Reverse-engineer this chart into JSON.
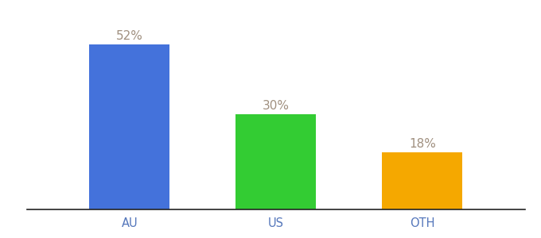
{
  "categories": [
    "AU",
    "US",
    "OTH"
  ],
  "values": [
    52,
    30,
    18
  ],
  "bar_colors": [
    "#4472db",
    "#33cc33",
    "#f5a800"
  ],
  "labels": [
    "52%",
    "30%",
    "18%"
  ],
  "label_color": "#a09080",
  "background_color": "#ffffff",
  "ylim": [
    0,
    60
  ],
  "bar_width": 0.55,
  "label_fontsize": 11,
  "tick_fontsize": 10.5,
  "tick_color": "#5577bb"
}
